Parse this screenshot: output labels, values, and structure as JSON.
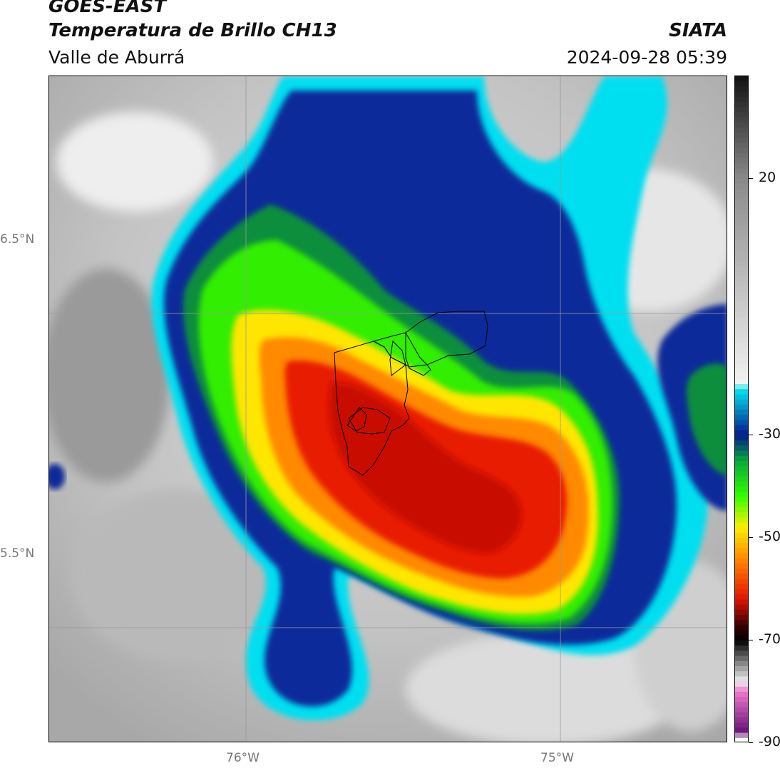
{
  "header": {
    "satellite": "GOES-EAST",
    "product": "Temperatura de Brillo CH13",
    "region": "Valle de Aburrá",
    "agency": "SIATA",
    "timestamp": "2024-09-28 05:39"
  },
  "map": {
    "lat_labels": [
      "6.5°N",
      "5.5°N"
    ],
    "lon_labels": [
      "76°W",
      "75°W"
    ],
    "gridlines": true,
    "boundary_layer": "Valle de Aburrá municipalities"
  },
  "colorbar": {
    "min": -90,
    "max": 40,
    "tick_labels": [
      "20",
      "-30",
      "-50",
      "-70",
      "-90"
    ],
    "tick_values": [
      20,
      -30,
      -50,
      -70,
      -90
    ],
    "palette_stops": [
      {
        "t": 40,
        "color": "#111111"
      },
      {
        "t": 20,
        "color": "#8a8a8a"
      },
      {
        "t": -20,
        "color": "#f2f2f2"
      },
      {
        "t": -21,
        "color": "#00e5ee"
      },
      {
        "t": -30,
        "color": "#001a8c"
      },
      {
        "t": -35,
        "color": "#0aa83c"
      },
      {
        "t": -42,
        "color": "#33ff00"
      },
      {
        "t": -48,
        "color": "#ffee00"
      },
      {
        "t": -55,
        "color": "#ff7a00"
      },
      {
        "t": -62,
        "color": "#e01400"
      },
      {
        "t": -67,
        "color": "#3a0000"
      },
      {
        "t": -70,
        "color": "#000000"
      },
      {
        "t": -78,
        "color": "#eeeeee"
      },
      {
        "t": -80,
        "color": "#ee77cc"
      },
      {
        "t": -88,
        "color": "#661177"
      },
      {
        "t": -89,
        "color": "#ffffff"
      }
    ]
  }
}
